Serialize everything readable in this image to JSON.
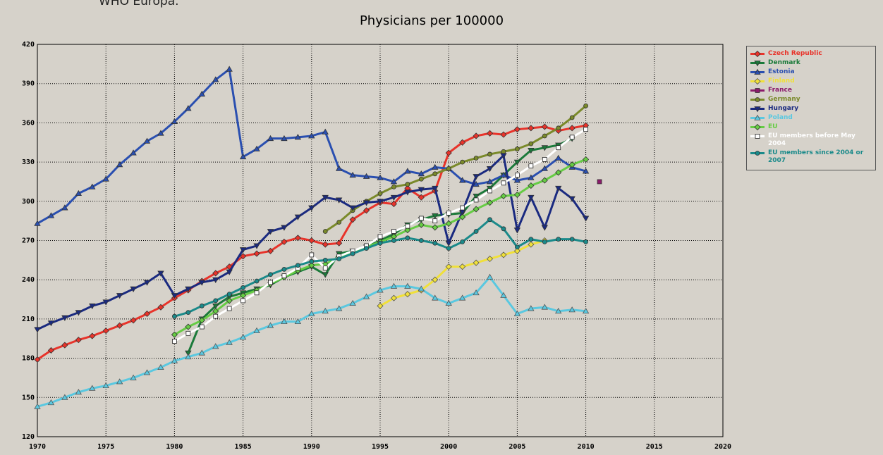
{
  "source": "WHO Europa.",
  "chart_data": {
    "type": "line",
    "title": "Physicians per 100000",
    "x": [
      1970,
      1971,
      1972,
      1973,
      1974,
      1975,
      1976,
      1977,
      1978,
      1979,
      1980,
      1981,
      1982,
      1983,
      1984,
      1985,
      1986,
      1987,
      1988,
      1989,
      1990,
      1991,
      1992,
      1993,
      1994,
      1995,
      1996,
      1997,
      1998,
      1999,
      2000,
      2001,
      2002,
      2003,
      2004,
      2005,
      2006,
      2007,
      2008,
      2009,
      2010,
      2011
    ],
    "xlim": [
      1970,
      2020
    ],
    "xticks": [
      1970,
      1975,
      1980,
      1985,
      1990,
      1995,
      2000,
      2005,
      2010,
      2015,
      2020
    ],
    "ylim": [
      120,
      420
    ],
    "yticks": [
      120,
      150,
      180,
      210,
      240,
      270,
      300,
      330,
      360,
      390,
      420
    ],
    "grid": true,
    "legend": "right",
    "series": [
      {
        "name": "Czech Republic",
        "color": "#e8332a",
        "marker": "diamond",
        "values": [
          179,
          186,
          190,
          194,
          197,
          201,
          205,
          209,
          214,
          219,
          226,
          232,
          239,
          245,
          250,
          258,
          260,
          262,
          269,
          272,
          270,
          267,
          268,
          286,
          293,
          299,
          298,
          310,
          303,
          308,
          337,
          345,
          350,
          352,
          351,
          355,
          356,
          357,
          354,
          356,
          358,
          null
        ]
      },
      {
        "name": "Denmark",
        "color": "#1b7a3a",
        "marker": "triangle-down",
        "values": [
          null,
          null,
          null,
          null,
          null,
          null,
          null,
          null,
          null,
          null,
          null,
          184,
          210,
          220,
          227,
          230,
          233,
          236,
          242,
          246,
          250,
          244,
          260,
          262,
          265,
          270,
          275,
          282,
          286,
          289,
          290,
          291,
          304,
          310,
          320,
          330,
          339,
          341,
          343,
          348,
          null,
          null
        ]
      },
      {
        "name": "Estonia",
        "color": "#2a4fb0",
        "marker": "triangle-up",
        "values": [
          283,
          289,
          295,
          306,
          311,
          317,
          328,
          337,
          346,
          352,
          361,
          371,
          382,
          393,
          401,
          334,
          340,
          348,
          348,
          349,
          350,
          353,
          325,
          320,
          319,
          318,
          315,
          323,
          321,
          326,
          325,
          316,
          313,
          315,
          320,
          316,
          318,
          325,
          333,
          326,
          323,
          null
        ]
      },
      {
        "name": "Finland",
        "color": "#f0e03a",
        "marker": "diamond-open",
        "values": [
          null,
          null,
          null,
          null,
          null,
          null,
          null,
          null,
          null,
          null,
          null,
          null,
          null,
          null,
          null,
          null,
          null,
          null,
          null,
          null,
          null,
          null,
          null,
          null,
          null,
          220,
          226,
          229,
          232,
          240,
          250,
          250,
          253,
          256,
          259,
          262,
          267,
          270,
          null,
          null,
          null,
          null
        ]
      },
      {
        "name": "France",
        "color": "#8b1a6b",
        "marker": "square",
        "values": [
          null,
          null,
          null,
          null,
          null,
          null,
          null,
          null,
          null,
          null,
          null,
          null,
          null,
          null,
          null,
          null,
          null,
          null,
          null,
          null,
          null,
          null,
          null,
          null,
          null,
          null,
          null,
          null,
          null,
          null,
          null,
          null,
          null,
          null,
          null,
          null,
          null,
          null,
          null,
          null,
          null,
          315
        ]
      },
      {
        "name": "Germany",
        "color": "#7a8a2a",
        "marker": "circle",
        "values": [
          null,
          null,
          null,
          null,
          null,
          null,
          null,
          null,
          null,
          null,
          null,
          null,
          null,
          null,
          null,
          null,
          null,
          null,
          null,
          null,
          null,
          277,
          284,
          293,
          300,
          306,
          311,
          313,
          317,
          321,
          325,
          330,
          333,
          336,
          338,
          340,
          344,
          350,
          356,
          364,
          373,
          null
        ]
      },
      {
        "name": "Hungary",
        "color": "#1a2a80",
        "marker": "triangle-down",
        "values": [
          202,
          207,
          211,
          215,
          220,
          223,
          228,
          233,
          238,
          245,
          228,
          233,
          238,
          240,
          246,
          263,
          266,
          277,
          280,
          288,
          295,
          303,
          301,
          295,
          299,
          300,
          303,
          307,
          309,
          310,
          268,
          292,
          319,
          325,
          335,
          278,
          303,
          280,
          310,
          302,
          287,
          null
        ]
      },
      {
        "name": "Poland",
        "color": "#5ac8e0",
        "marker": "triangle-open",
        "values": [
          143,
          146,
          150,
          154,
          157,
          159,
          162,
          165,
          169,
          173,
          178,
          181,
          184,
          189,
          192,
          196,
          201,
          205,
          208,
          208,
          214,
          216,
          218,
          222,
          227,
          232,
          235,
          235,
          233,
          226,
          222,
          226,
          230,
          242,
          228,
          214,
          218,
          219,
          216,
          217,
          216,
          null
        ]
      },
      {
        "name": "EU",
        "color": "#66cc44",
        "marker": "diamond",
        "values": [
          null,
          null,
          null,
          null,
          null,
          null,
          null,
          null,
          null,
          null,
          198,
          204,
          209,
          216,
          224,
          228,
          232,
          237,
          242,
          247,
          251,
          252,
          257,
          261,
          265,
          269,
          273,
          278,
          282,
          280,
          283,
          288,
          294,
          299,
          304,
          305,
          312,
          316,
          322,
          328,
          332,
          null
        ]
      },
      {
        "name": "EU members before May 2004",
        "color": "#ffffff",
        "marker": "square-open",
        "values": [
          null,
          null,
          null,
          null,
          null,
          null,
          null,
          null,
          null,
          null,
          193,
          199,
          204,
          212,
          218,
          224,
          230,
          238,
          243,
          249,
          259,
          249,
          258,
          262,
          266,
          273,
          277,
          281,
          287,
          285,
          291,
          295,
          301,
          308,
          314,
          320,
          327,
          332,
          341,
          349,
          355,
          null
        ]
      },
      {
        "name": "EU members since 2004 or 2007",
        "color": "#1a8a8a",
        "marker": "circle",
        "values": [
          null,
          null,
          null,
          null,
          null,
          null,
          null,
          null,
          null,
          null,
          212,
          215,
          220,
          224,
          229,
          234,
          239,
          244,
          248,
          251,
          254,
          255,
          256,
          260,
          264,
          268,
          270,
          272,
          270,
          268,
          264,
          269,
          277,
          286,
          279,
          265,
          271,
          269,
          271,
          271,
          269,
          null
        ]
      }
    ]
  }
}
